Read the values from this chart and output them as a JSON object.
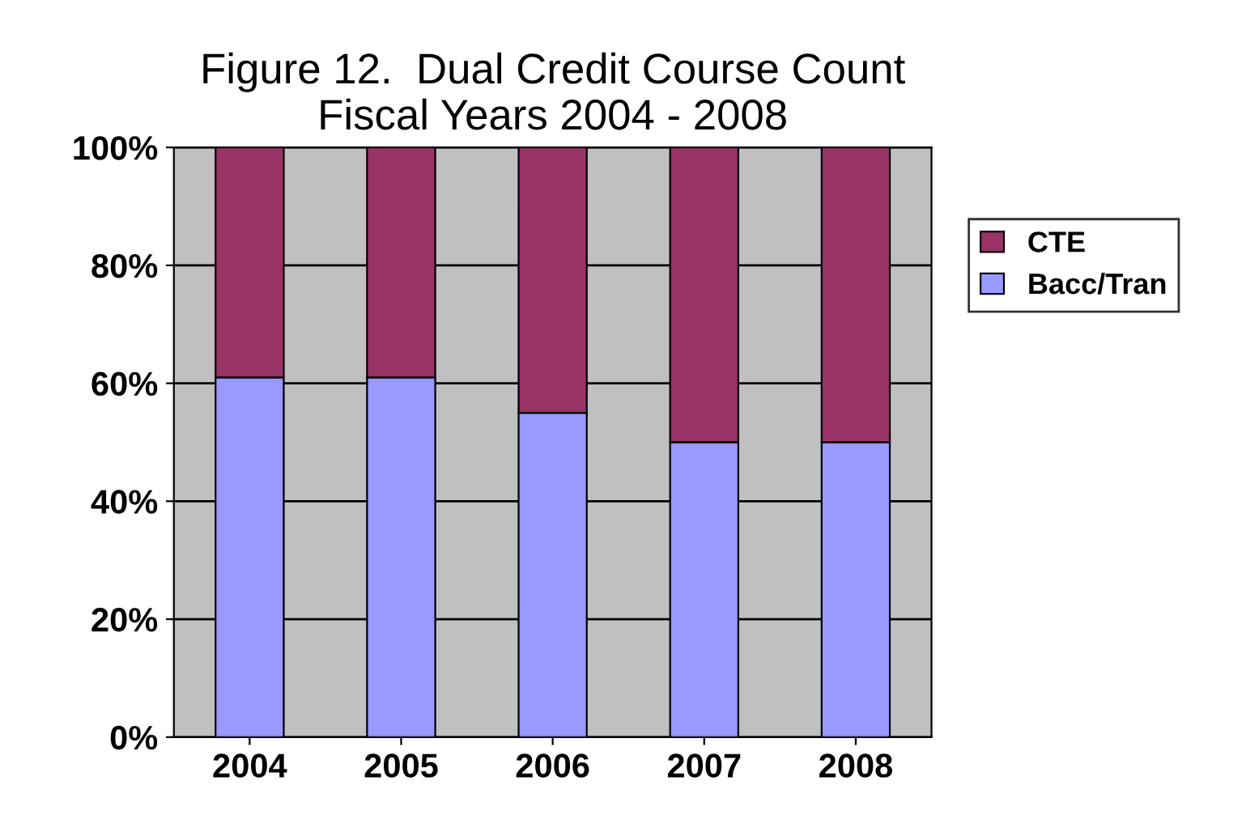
{
  "chart_data": {
    "type": "bar",
    "title": "Figure 12.  Dual Credit Course Count\nFiscal Years 2004 - 2008",
    "categories": [
      "2004",
      "2005",
      "2006",
      "2007",
      "2008"
    ],
    "stacked": true,
    "series": [
      {
        "name": "Bacc/Tran",
        "color": "#9999ff",
        "values": [
          61,
          61,
          55,
          50,
          50
        ]
      },
      {
        "name": "CTE",
        "color": "#993366",
        "values": [
          39,
          39,
          45,
          50,
          50
        ]
      }
    ],
    "ylim": [
      0,
      100
    ],
    "yticks": [
      {
        "value": 0,
        "label": "0%"
      },
      {
        "value": 20,
        "label": "20%"
      },
      {
        "value": 40,
        "label": "40%"
      },
      {
        "value": 60,
        "label": "60%"
      },
      {
        "value": 80,
        "label": "80%"
      },
      {
        "value": 100,
        "label": "100%"
      }
    ],
    "grid": "y",
    "legend": "right"
  }
}
